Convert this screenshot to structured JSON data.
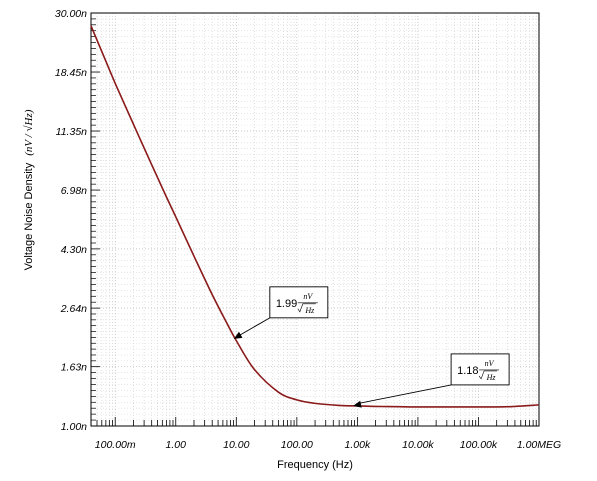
{
  "chart_data": {
    "type": "line",
    "xlabel": "Frequency (Hz)",
    "ylabel": "Voltage Noise Density",
    "ylabel_unit": "(nV / √Hz)",
    "x_scale": "log",
    "y_scale": "log",
    "xlim": [
      0.0398,
      1000000
    ],
    "ylim": [
      1.0,
      30.0
    ],
    "grid": true,
    "x_tick_values": [
      0.1,
      1,
      10,
      100,
      1000,
      10000,
      100000,
      1000000
    ],
    "x_tick_labels": [
      "100.00m",
      "1.00",
      "10.00",
      "100.00",
      "1.00k",
      "10.00k",
      "100.00k",
      "1.00MEG"
    ],
    "y_tick_values": [
      1.0,
      1.63,
      2.64,
      4.3,
      6.98,
      11.35,
      18.45,
      30.0
    ],
    "y_tick_labels": [
      "1.00n",
      "1.63n",
      "2.64n",
      "4.30n",
      "6.98n",
      "11.35n",
      "18.45n",
      "30.00n"
    ],
    "series": [
      {
        "color": "#8b1a1a",
        "x": [
          0.0398,
          0.063,
          0.1,
          0.2,
          0.4,
          0.7,
          1,
          2,
          4,
          7,
          10,
          20,
          50,
          100,
          200,
          500,
          1000,
          2000,
          5000,
          10000,
          100000,
          300000,
          1000000
        ],
        "y": [
          27.0,
          21.3,
          16.8,
          12.0,
          8.6,
          6.6,
          5.6,
          4.05,
          2.95,
          2.33,
          2.02,
          1.59,
          1.32,
          1.24,
          1.205,
          1.185,
          1.18,
          1.175,
          1.172,
          1.17,
          1.17,
          1.172,
          1.19
        ]
      }
    ],
    "annotations": [
      {
        "value": "1.99",
        "unit_num": "nV",
        "unit_den": "Hz",
        "x": 9.1,
        "y": 2.05
      },
      {
        "value": "1.18",
        "unit_num": "nV",
        "unit_den": "Hz",
        "x": 850,
        "y": 1.18
      }
    ]
  }
}
